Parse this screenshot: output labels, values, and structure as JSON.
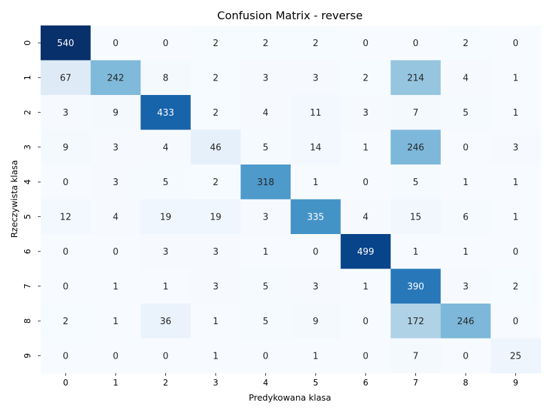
{
  "chart_data": {
    "type": "heatmap",
    "title": "Confusion Matrix - reverse",
    "xlabel": "Predykowana klasa",
    "ylabel": "Rzeczywista klasa",
    "x_categories": [
      "0",
      "1",
      "2",
      "3",
      "4",
      "5",
      "6",
      "7",
      "8",
      "9"
    ],
    "y_categories": [
      "0",
      "1",
      "2",
      "3",
      "4",
      "5",
      "6",
      "7",
      "8",
      "9"
    ],
    "colormap": "Blues",
    "value_range": [
      0,
      540
    ],
    "colorbar": false,
    "grid": false,
    "values": [
      [
        540,
        0,
        0,
        2,
        2,
        2,
        0,
        0,
        2,
        0
      ],
      [
        67,
        242,
        8,
        2,
        3,
        3,
        2,
        214,
        4,
        1
      ],
      [
        3,
        9,
        433,
        2,
        4,
        11,
        3,
        7,
        5,
        1
      ],
      [
        9,
        3,
        4,
        46,
        5,
        14,
        1,
        246,
        0,
        3
      ],
      [
        0,
        3,
        5,
        2,
        318,
        1,
        0,
        5,
        1,
        1
      ],
      [
        12,
        4,
        19,
        19,
        3,
        335,
        4,
        15,
        6,
        1
      ],
      [
        0,
        0,
        3,
        3,
        1,
        0,
        499,
        1,
        1,
        0
      ],
      [
        0,
        1,
        1,
        3,
        5,
        3,
        1,
        390,
        3,
        2
      ],
      [
        2,
        1,
        36,
        1,
        5,
        9,
        0,
        172,
        246,
        0
      ],
      [
        0,
        0,
        0,
        1,
        0,
        1,
        0,
        7,
        0,
        25
      ]
    ]
  }
}
